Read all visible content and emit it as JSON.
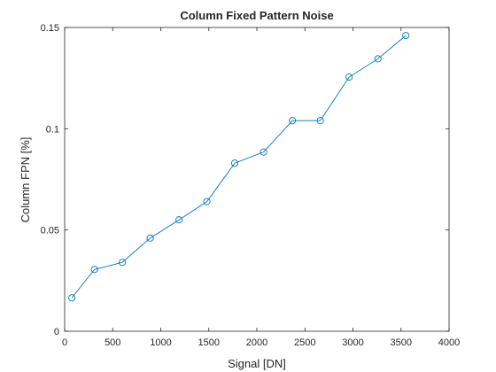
{
  "chart_data": {
    "type": "line",
    "title": "Column Fixed Pattern Noise",
    "xlabel": "Signal [DN]",
    "ylabel": "Column FPN [%]",
    "xlim": [
      0,
      4000
    ],
    "ylim": [
      0,
      0.15
    ],
    "xticks": [
      0,
      500,
      1000,
      1500,
      2000,
      2500,
      3000,
      3500,
      4000
    ],
    "yticks": [
      0,
      0.05,
      0.1,
      0.15
    ],
    "xtick_labels": [
      "0",
      "500",
      "1000",
      "1500",
      "2000",
      "2500",
      "3000",
      "3500",
      "4000"
    ],
    "ytick_labels": [
      "0",
      "0.05",
      "0.1",
      "0.15"
    ],
    "grid": false,
    "marker": "circle",
    "series": [
      {
        "color": "#0072BD",
        "x": [
          75,
          310,
          600,
          890,
          1190,
          1480,
          1770,
          2070,
          2370,
          2660,
          2960,
          3260,
          3550
        ],
        "y": [
          0.0165,
          0.0305,
          0.034,
          0.046,
          0.055,
          0.064,
          0.083,
          0.0885,
          0.104,
          0.104,
          0.1255,
          0.1345,
          0.146
        ]
      }
    ]
  }
}
